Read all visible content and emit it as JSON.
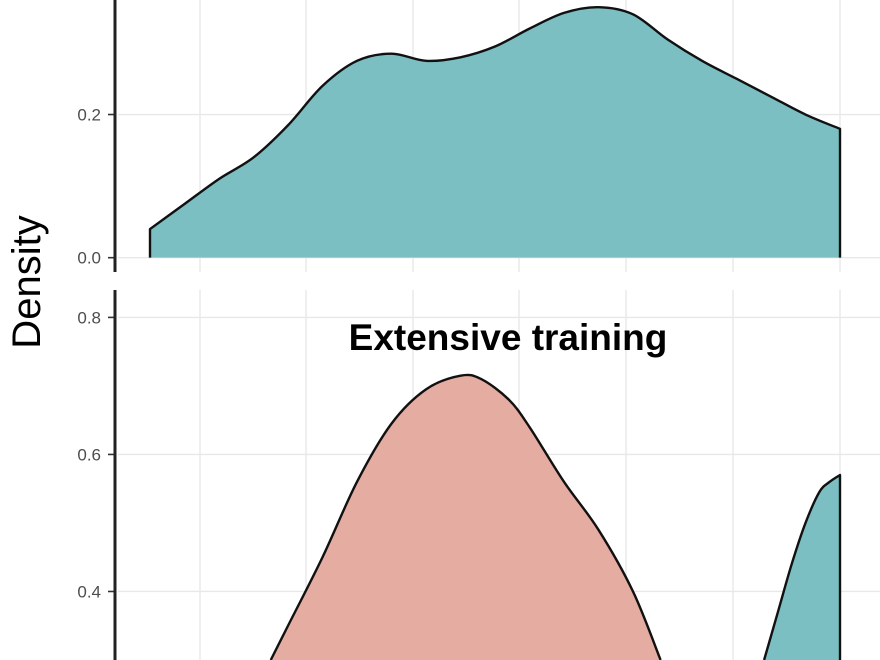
{
  "chart_data": [
    {
      "type": "area",
      "panel": "upper",
      "title": "",
      "ylabel": "Density",
      "ylim": [
        -0.02,
        0.36
      ],
      "yticks": [
        0.0,
        0.2
      ],
      "ytick_labels": [
        "0.0",
        "0.2"
      ],
      "xlim": [
        0,
        100
      ],
      "grid": true,
      "series": [
        {
          "color": "#7bbfc3",
          "x": [
            0,
            5,
            10,
            15,
            20,
            25,
            30,
            35,
            40,
            45,
            50,
            55,
            60,
            65,
            70,
            75,
            80,
            85,
            90,
            95,
            100
          ],
          "y": [
            0.04,
            0.075,
            0.11,
            0.14,
            0.185,
            0.24,
            0.275,
            0.285,
            0.275,
            0.28,
            0.295,
            0.32,
            0.342,
            0.35,
            0.34,
            0.305,
            0.275,
            0.25,
            0.225,
            0.2,
            0.18
          ]
        }
      ]
    },
    {
      "type": "area",
      "panel": "lower",
      "title": "Extensive training",
      "ylabel": "Density",
      "ylim": [
        0.3,
        0.84
      ],
      "yticks": [
        0.4,
        0.6,
        0.8
      ],
      "ytick_labels": [
        "0.4",
        "0.6",
        "0.8"
      ],
      "xlim": [
        0,
        100
      ],
      "grid": true,
      "series": [
        {
          "color": "#e5aca2",
          "x": [
            17.5,
            20,
            25,
            30,
            35,
            40,
            45,
            48,
            52,
            55,
            60,
            65,
            70,
            74
          ],
          "y": [
            0.3,
            0.35,
            0.45,
            0.56,
            0.645,
            0.695,
            0.715,
            0.71,
            0.68,
            0.64,
            0.56,
            0.49,
            0.4,
            0.3
          ]
        },
        {
          "color": "#7bbfc3",
          "x": [
            89,
            91,
            93,
            95,
            97,
            98.5,
            100
          ],
          "y": [
            0.3,
            0.37,
            0.44,
            0.5,
            0.545,
            0.56,
            0.57
          ]
        }
      ]
    }
  ]
}
